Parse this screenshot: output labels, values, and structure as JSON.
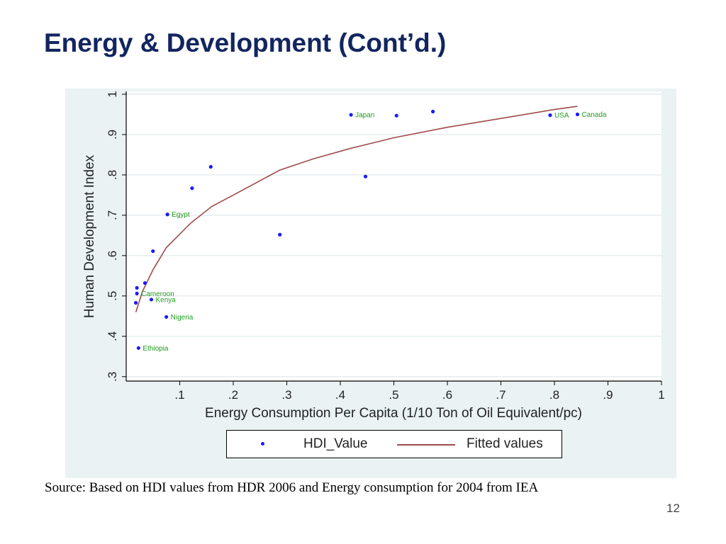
{
  "slide": {
    "title": "Energy & Development (Cont’d.)",
    "source": "Source: Based on HDI values from HDR 2006 and Energy consumption for 2004 from IEA",
    "page_number": "12"
  },
  "colors": {
    "title": "#12255f",
    "panel_bg": "#eaf2f3",
    "plot_bg": "#ffffff",
    "points": "#1a1aff",
    "fit_line": "#9e4b4b",
    "point_labels": "#1e9e1e",
    "grid": "#e4ecee"
  },
  "chart_data": {
    "type": "scatter",
    "xlabel": "Energy Consumption Per Capita (1/10 Ton of Oil Equivalent/pc)",
    "ylabel": "Human Development Index",
    "xlim": [
      0,
      1
    ],
    "ylim": [
      0.3,
      1
    ],
    "xticks": [
      ".1",
      ".2",
      ".3",
      ".4",
      ".5",
      ".6",
      ".7",
      ".8",
      ".9",
      "1"
    ],
    "yticks": [
      ".3",
      ".4",
      ".5",
      ".6",
      ".7",
      ".8",
      ".9",
      "1"
    ],
    "y_tick_labels_rotated": true,
    "grid": true,
    "legend_position": "bottom",
    "legend": [
      "HDI_Value",
      "Fitted values"
    ],
    "series": [
      {
        "name": "HDI_Value",
        "type": "scatter",
        "points": [
          {
            "x": 0.42,
            "y": 0.949,
            "label": "Japan"
          },
          {
            "x": 0.505,
            "y": 0.947,
            "label": ""
          },
          {
            "x": 0.573,
            "y": 0.957,
            "label": ""
          },
          {
            "x": 0.792,
            "y": 0.948,
            "label": "USA"
          },
          {
            "x": 0.843,
            "y": 0.95,
            "label": "Canada"
          },
          {
            "x": 0.447,
            "y": 0.796,
            "label": ""
          },
          {
            "x": 0.158,
            "y": 0.82,
            "label": ""
          },
          {
            "x": 0.123,
            "y": 0.767,
            "label": ""
          },
          {
            "x": 0.077,
            "y": 0.702,
            "label": "Egypt"
          },
          {
            "x": 0.287,
            "y": 0.652,
            "label": ""
          },
          {
            "x": 0.05,
            "y": 0.611,
            "label": ""
          },
          {
            "x": 0.035,
            "y": 0.532,
            "label": ""
          },
          {
            "x": 0.02,
            "y": 0.52,
            "label": ""
          },
          {
            "x": 0.02,
            "y": 0.506,
            "label": "Cameroon"
          },
          {
            "x": 0.047,
            "y": 0.491,
            "label": "Kenya"
          },
          {
            "x": 0.018,
            "y": 0.483,
            "label": ""
          },
          {
            "x": 0.075,
            "y": 0.448,
            "label": "Nigeria"
          },
          {
            "x": 0.023,
            "y": 0.371,
            "label": "Ethiopia"
          }
        ]
      },
      {
        "name": "Fitted values",
        "type": "line",
        "points": [
          {
            "x": 0.018,
            "y": 0.46
          },
          {
            "x": 0.03,
            "y": 0.51
          },
          {
            "x": 0.05,
            "y": 0.565
          },
          {
            "x": 0.075,
            "y": 0.62
          },
          {
            "x": 0.12,
            "y": 0.68
          },
          {
            "x": 0.16,
            "y": 0.722
          },
          {
            "x": 0.2,
            "y": 0.75
          },
          {
            "x": 0.287,
            "y": 0.812
          },
          {
            "x": 0.35,
            "y": 0.84
          },
          {
            "x": 0.42,
            "y": 0.866
          },
          {
            "x": 0.5,
            "y": 0.892
          },
          {
            "x": 0.6,
            "y": 0.918
          },
          {
            "x": 0.7,
            "y": 0.94
          },
          {
            "x": 0.8,
            "y": 0.962
          },
          {
            "x": 0.843,
            "y": 0.97
          }
        ]
      }
    ]
  }
}
